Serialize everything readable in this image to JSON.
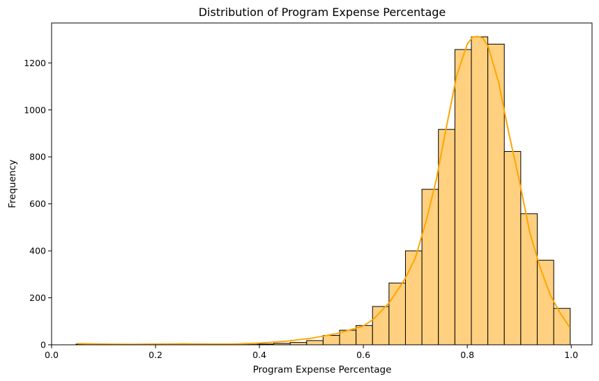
{
  "chart_data": {
    "type": "bar",
    "title": "Distribution of Program Expense Percentage",
    "xlabel": "Program Expense Percentage",
    "ylabel": "Frequency",
    "xlim": [
      0.0,
      1.04
    ],
    "ylim": [
      0,
      1370
    ],
    "xticks": [
      "0.0",
      "0.2",
      "0.4",
      "0.6",
      "0.8",
      "1.0"
    ],
    "yticks": [
      "0",
      "200",
      "400",
      "600",
      "800",
      "1000",
      "1200"
    ],
    "bin_start": 0.047,
    "bin_width": 0.0317,
    "values": [
      3,
      2,
      1,
      1,
      3,
      2,
      3,
      3,
      1,
      2,
      1,
      3,
      6,
      10,
      18,
      40,
      62,
      82,
      163,
      263,
      400,
      662,
      917,
      1257,
      1311,
      1280,
      823,
      558,
      360,
      155
    ],
    "bar_color": "#ffd07f",
    "bar_edge_color": "#000000",
    "kde_color": "#ffa500",
    "kde": {
      "x": [
        0.05,
        0.1,
        0.15,
        0.2,
        0.25,
        0.3,
        0.35,
        0.4,
        0.45,
        0.5,
        0.55,
        0.6,
        0.62,
        0.65,
        0.68,
        0.7,
        0.72,
        0.74,
        0.76,
        0.78,
        0.8,
        0.81,
        0.82,
        0.83,
        0.84,
        0.86,
        0.88,
        0.9,
        0.92,
        0.94,
        0.96,
        0.98,
        0.997
      ],
      "y": [
        5,
        3,
        2,
        3,
        4,
        3,
        3,
        7,
        15,
        28,
        48,
        80,
        110,
        180,
        280,
        370,
        520,
        700,
        930,
        1150,
        1280,
        1310,
        1313,
        1305,
        1270,
        1120,
        900,
        700,
        480,
        330,
        210,
        130,
        75
      ]
    },
    "grid": false,
    "legend": "none"
  }
}
